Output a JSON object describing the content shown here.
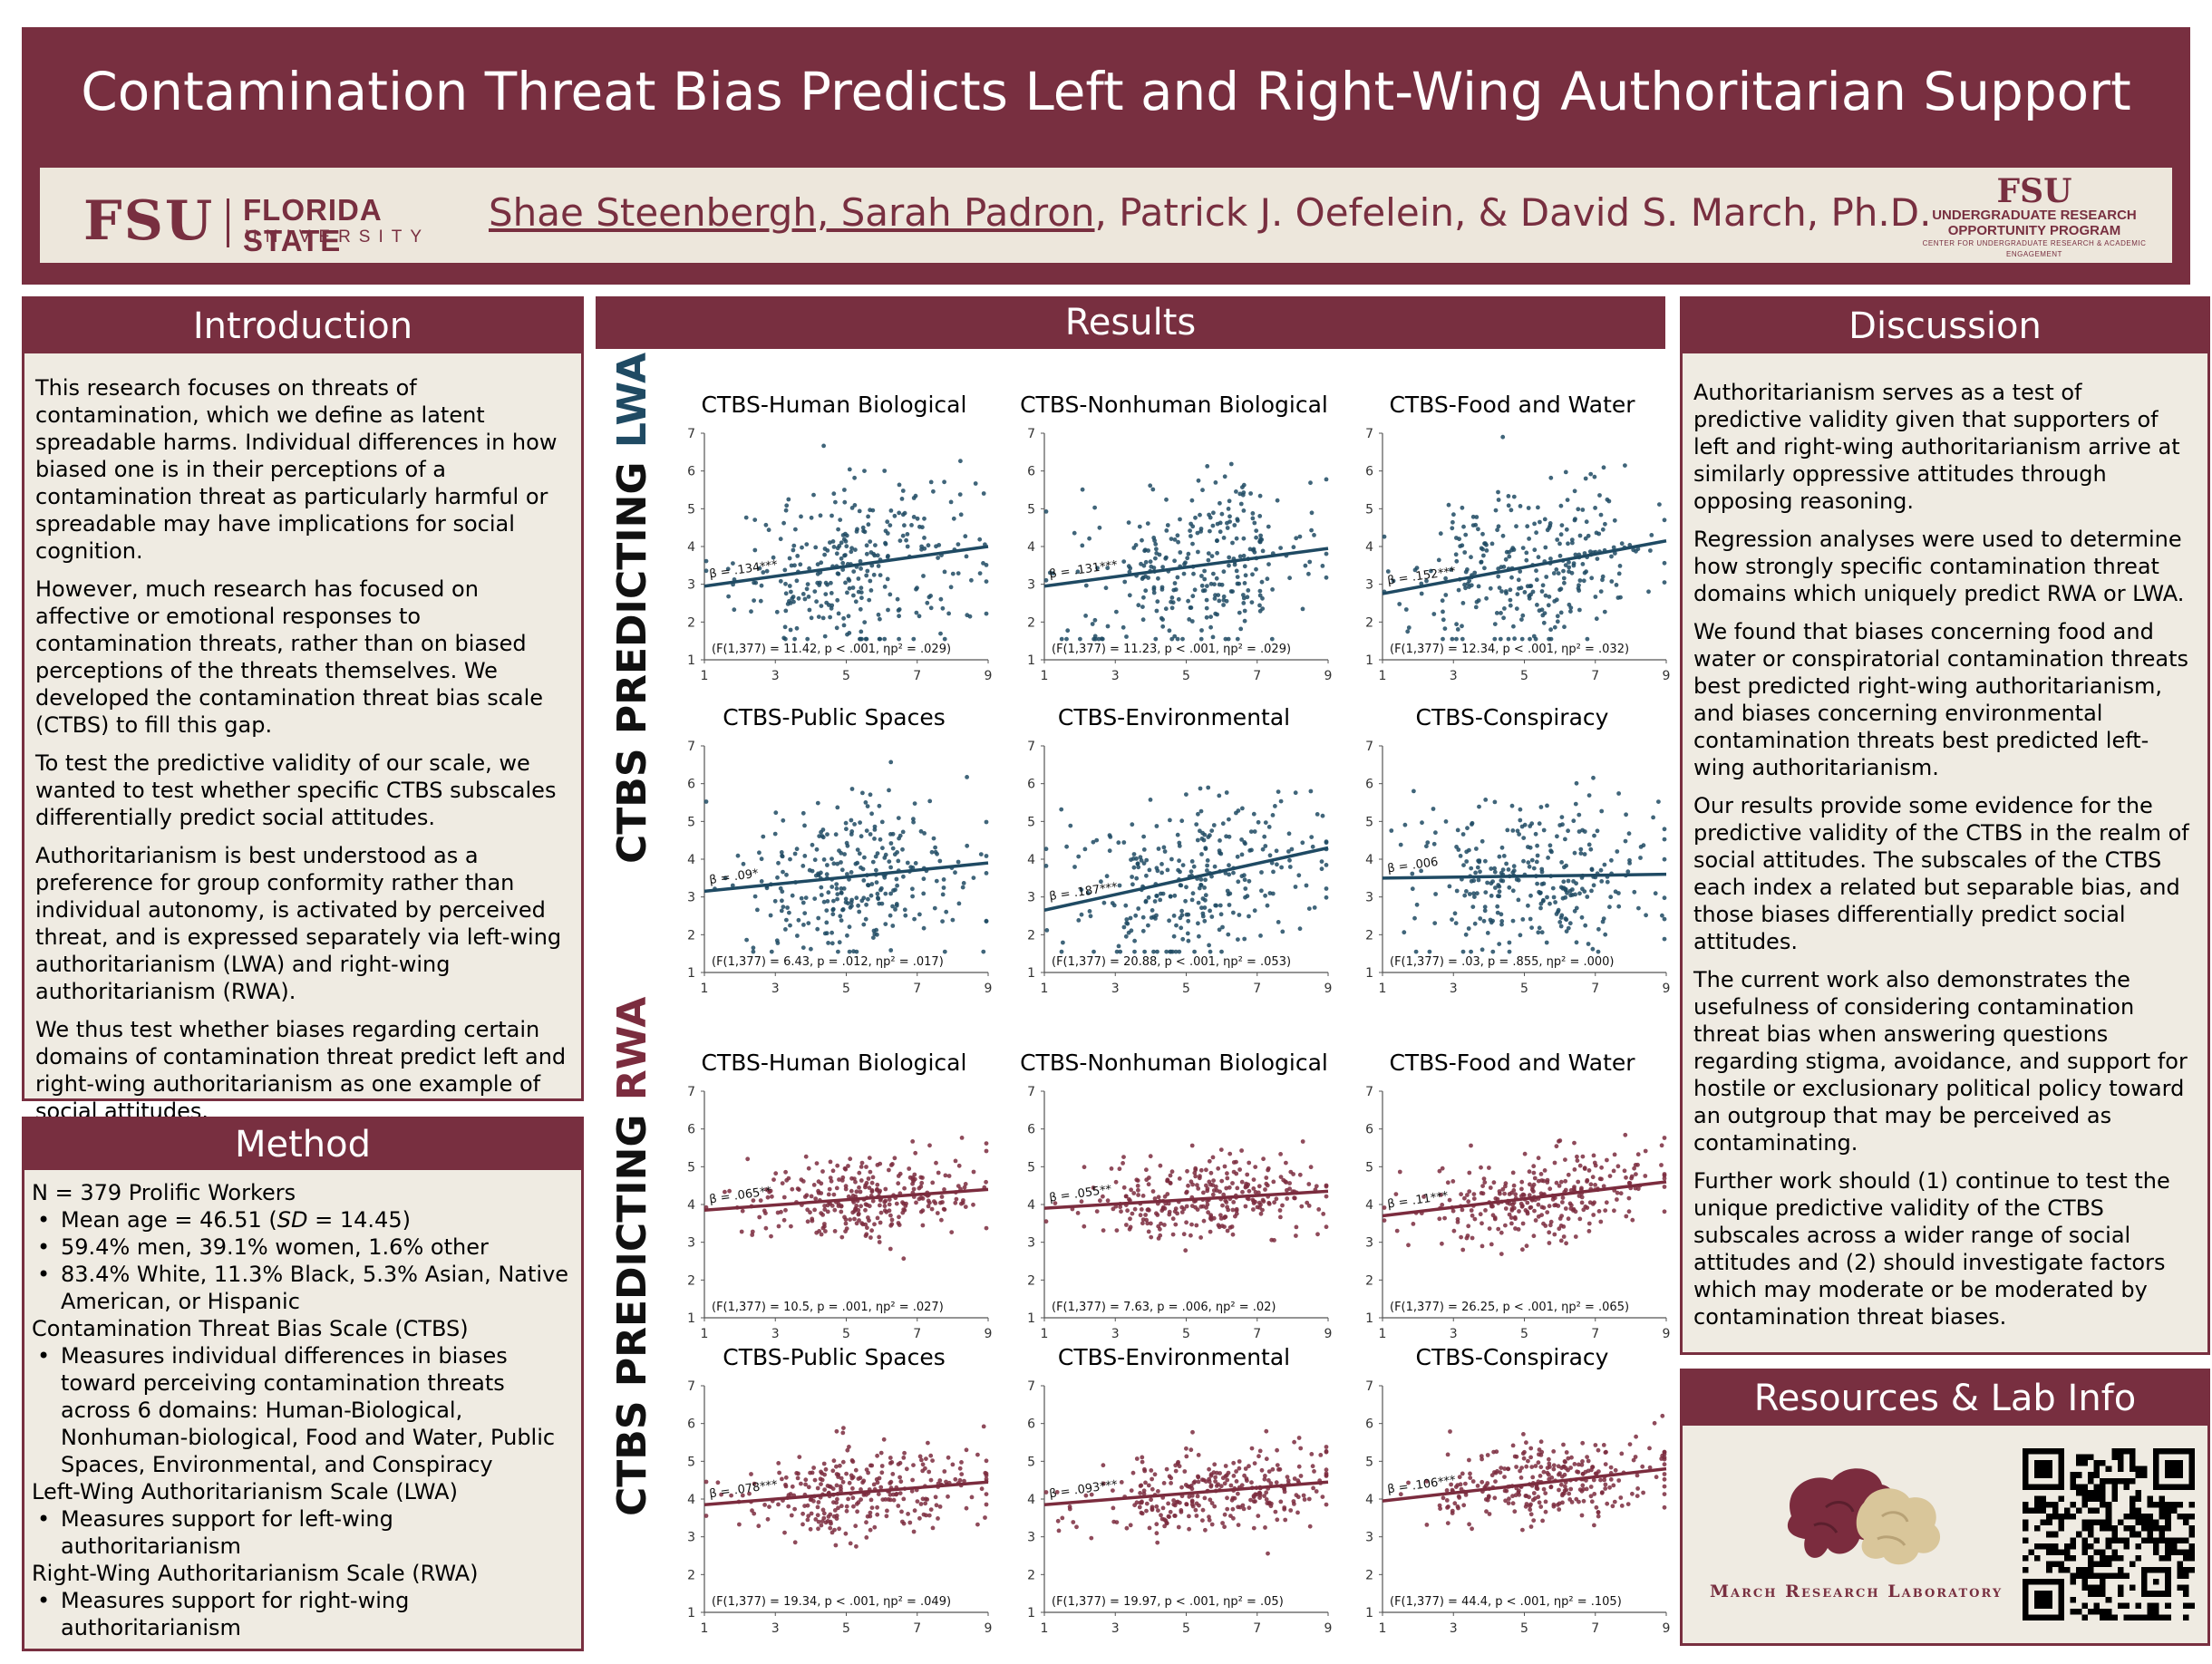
{
  "header": {
    "title": "Contamination Threat Bias Predicts Left and Right-Wing Authoritarian Support",
    "fsu_letters": "FSU",
    "fsu_name": "FLORIDA STATE",
    "fsu_university": "UNIVERSITY",
    "authors_underlined": "Shae Steenbergh, Sarah Padron",
    "authors_rest": ", Patrick J. Oefelein, & David S. March, Ph.D.",
    "urop_letters": "FSU",
    "urop_line1": "UNDERGRADUATE RESEARCH",
    "urop_line2": "OPPORTUNITY PROGRAM",
    "urop_line3": "CENTER FOR UNDERGRADUATE RESEARCH & ACADEMIC ENGAGEMENT"
  },
  "introduction": {
    "heading": "Introduction",
    "paragraphs": [
      "This research focuses on threats of contamination, which we define as latent spreadable harms. Individual differences in how biased one is in their perceptions of a contamination threat as particularly harmful or spreadable may have implications for social cognition.",
      "However, much research has focused on affective or emotional responses to contamination threats, rather than on biased perceptions of the threats themselves. We developed the contamination threat bias scale (CTBS) to fill this gap.",
      "To test the predictive validity of our scale, we wanted to test whether specific CTBS subscales differentially predict social attitudes.",
      "Authoritarianism is best understood as a preference for group conformity rather than individual autonomy, is activated by perceived threat, and is expressed separately via left-wing authoritarianism (LWA) and right-wing authoritarianism (RWA).",
      "We thus test whether biases regarding certain domains of contamination threat predict left and right-wing authoritarianism as one example of social attitudes."
    ]
  },
  "method": {
    "heading": "Method",
    "sample": "N = 379 Prolific Workers",
    "mean_age_prefix": "Mean age = 46.51 (",
    "mean_age_sd": "SD",
    "mean_age_suffix": " = 14.45)",
    "gender": "59.4% men, 39.1% women, 1.6% other",
    "race": "83.4% White, 11.3% Black, 5.3% Asian, Native American, or Hispanic",
    "ctbs_heading": "Contamination Threat Bias Scale (CTBS)",
    "ctbs_desc": "Measures individual differences in biases toward perceiving contamination threats across 6 domains: Human-Biological, Nonhuman-biological, Food and Water, Public Spaces, Environmental, and Conspiracy",
    "lwa_heading": "Left-Wing Authoritarianism Scale (LWA)",
    "lwa_desc": "Measures support for left-wing authoritarianism",
    "rwa_heading": "Right-Wing Authoritarianism Scale (RWA)",
    "rwa_desc": "Measures support for right-wing authoritarianism"
  },
  "results": {
    "heading": "Results",
    "lwa_label_prefix": "CTBS PREDICTING ",
    "lwa_label_accent": "LWA",
    "rwa_label_prefix": "CTBS PREDICTING ",
    "rwa_label_accent": "RWA"
  },
  "discussion": {
    "heading": "Discussion",
    "paragraphs": [
      "Authoritarianism serves as a test of predictive validity given that supporters of left and right-wing authoritarianism arrive at similarly oppressive attitudes through opposing reasoning.",
      "Regression analyses were used to determine how strongly specific contamination threat domains which uniquely predict RWA or LWA.",
      "We found that biases concerning food and water or conspiratorial contamination threats best predicted right-wing authoritarianism, and biases concerning environmental contamination threats best predicted left-wing authoritarianism.",
      "Our results provide some evidence for the predictive validity of the CTBS in the realm of social attitudes. The subscales of the CTBS each index a related but separable bias, and those biases differentially predict social attitudes.",
      "The current work also demonstrates the usefulness of considering contamination threat bias when answering questions regarding stigma, avoidance, and support for hostile or exclusionary political policy toward an outgroup that may be perceived as contaminating.",
      "Further work should (1) continue to test the unique predictive validity of the CTBS subscales across a wider range of social attitudes and (2) should investigate factors which may moderate or be moderated by contamination threat biases."
    ]
  },
  "resources": {
    "heading": "Resources & Lab Info",
    "lab_name": "March Research Laboratory"
  },
  "colors": {
    "maroon": "#782f40",
    "lwa_blue": "#1f4a63",
    "rwa_maroon": "#7b2c3e",
    "panel_bg": "#efebe2"
  },
  "icons": [
    "brain-logo-icon",
    "qr-code-icon"
  ],
  "chart_data": [
    {
      "type": "scatter",
      "group": "LWA",
      "title": "CTBS-Human Biological",
      "xlim": [
        1,
        9
      ],
      "ylim": [
        1,
        7
      ],
      "xticks": [
        1,
        3,
        5,
        7,
        9
      ],
      "yticks": [
        1,
        2,
        3,
        4,
        5,
        6,
        7
      ],
      "trend": [
        [
          1,
          2.95
        ],
        [
          9,
          4.0
        ]
      ],
      "beta_label": "β = .134***",
      "stats": "(F(1,377) = 11.42, p < .001, ηp² = .029)"
    },
    {
      "type": "scatter",
      "group": "LWA",
      "title": "CTBS-Nonhuman Biological",
      "xlim": [
        1,
        9
      ],
      "ylim": [
        1,
        7
      ],
      "xticks": [
        1,
        3,
        5,
        7,
        9
      ],
      "yticks": [
        1,
        2,
        3,
        4,
        5,
        6,
        7
      ],
      "trend": [
        [
          1,
          2.95
        ],
        [
          9,
          3.95
        ]
      ],
      "beta_label": "β = .131***",
      "stats": "(F(1,377) = 11.23, p < .001, ηp² = .029)"
    },
    {
      "type": "scatter",
      "group": "LWA",
      "title": "CTBS-Food and Water",
      "xlim": [
        1,
        9
      ],
      "ylim": [
        1,
        7
      ],
      "xticks": [
        1,
        3,
        5,
        7,
        9
      ],
      "yticks": [
        1,
        2,
        3,
        4,
        5,
        6,
        7
      ],
      "trend": [
        [
          1,
          2.75
        ],
        [
          9,
          4.15
        ]
      ],
      "beta_label": "β = .152***",
      "stats": "(F(1,377) = 12.34, p < .001, ηp² = .032)"
    },
    {
      "type": "scatter",
      "group": "LWA",
      "title": "CTBS-Public Spaces",
      "xlim": [
        1,
        9
      ],
      "ylim": [
        1,
        7
      ],
      "xticks": [
        1,
        3,
        5,
        7,
        9
      ],
      "yticks": [
        1,
        2,
        3,
        4,
        5,
        6,
        7
      ],
      "trend": [
        [
          1,
          3.15
        ],
        [
          9,
          3.9
        ]
      ],
      "beta_label": "β = .09*",
      "stats": "(F(1,377) = 6.43, p = .012, ηp² = .017)"
    },
    {
      "type": "scatter",
      "group": "LWA",
      "title": "CTBS-Environmental",
      "xlim": [
        1,
        9
      ],
      "ylim": [
        1,
        7
      ],
      "xticks": [
        1,
        3,
        5,
        7,
        9
      ],
      "yticks": [
        1,
        2,
        3,
        4,
        5,
        6,
        7
      ],
      "trend": [
        [
          1,
          2.65
        ],
        [
          9,
          4.3
        ]
      ],
      "beta_label": "β = .187***",
      "stats": "(F(1,377) = 20.88, p < .001, ηp² = .053)"
    },
    {
      "type": "scatter",
      "group": "LWA",
      "title": "CTBS-Conspiracy",
      "xlim": [
        1,
        9
      ],
      "ylim": [
        1,
        7
      ],
      "xticks": [
        1,
        3,
        5,
        7,
        9
      ],
      "yticks": [
        1,
        2,
        3,
        4,
        5,
        6,
        7
      ],
      "trend": [
        [
          1,
          3.5
        ],
        [
          9,
          3.6
        ]
      ],
      "beta_label": "β = .006",
      "stats": "(F(1,377) = .03, p = .855, ηp² = .000)"
    },
    {
      "type": "scatter",
      "group": "RWA",
      "title": "CTBS-Human Biological",
      "xlim": [
        1,
        9
      ],
      "ylim": [
        1,
        7
      ],
      "xticks": [
        1,
        3,
        5,
        7,
        9
      ],
      "yticks": [
        1,
        2,
        3,
        4,
        5,
        6,
        7
      ],
      "trend": [
        [
          1,
          3.85
        ],
        [
          9,
          4.4
        ]
      ],
      "beta_label": "β = .065**",
      "stats": "(F(1,377) = 10.5, p = .001, ηp² = .027)"
    },
    {
      "type": "scatter",
      "group": "RWA",
      "title": "CTBS-Nonhuman Biological",
      "xlim": [
        1,
        9
      ],
      "ylim": [
        1,
        7
      ],
      "xticks": [
        1,
        3,
        5,
        7,
        9
      ],
      "yticks": [
        1,
        2,
        3,
        4,
        5,
        6,
        7
      ],
      "trend": [
        [
          1,
          3.9
        ],
        [
          9,
          4.35
        ]
      ],
      "beta_label": "β = .055**",
      "stats": "(F(1,377) = 7.63, p = .006, ηp² = .02)"
    },
    {
      "type": "scatter",
      "group": "RWA",
      "title": "CTBS-Food and Water",
      "xlim": [
        1,
        9
      ],
      "ylim": [
        1,
        7
      ],
      "xticks": [
        1,
        3,
        5,
        7,
        9
      ],
      "yticks": [
        1,
        2,
        3,
        4,
        5,
        6,
        7
      ],
      "trend": [
        [
          1,
          3.7
        ],
        [
          9,
          4.6
        ]
      ],
      "beta_label": "β = .11***",
      "stats": "(F(1,377) = 26.25, p < .001, ηp² = .065)"
    },
    {
      "type": "scatter",
      "group": "RWA",
      "title": "CTBS-Public Spaces",
      "xlim": [
        1,
        9
      ],
      "ylim": [
        1,
        7
      ],
      "xticks": [
        1,
        3,
        5,
        7,
        9
      ],
      "yticks": [
        1,
        2,
        3,
        4,
        5,
        6,
        7
      ],
      "trend": [
        [
          1,
          3.85
        ],
        [
          9,
          4.45
        ]
      ],
      "beta_label": "β = .078***",
      "stats": "(F(1,377) = 19.34, p < .001, ηp² = .049)"
    },
    {
      "type": "scatter",
      "group": "RWA",
      "title": "CTBS-Environmental",
      "xlim": [
        1,
        9
      ],
      "ylim": [
        1,
        7
      ],
      "xticks": [
        1,
        3,
        5,
        7,
        9
      ],
      "yticks": [
        1,
        2,
        3,
        4,
        5,
        6,
        7
      ],
      "trend": [
        [
          1,
          3.85
        ],
        [
          9,
          4.45
        ]
      ],
      "beta_label": "β = .093***",
      "stats": "(F(1,377) = 19.97, p < .001, ηp² = .05)"
    },
    {
      "type": "scatter",
      "group": "RWA",
      "title": "CTBS-Conspiracy",
      "xlim": [
        1,
        9
      ],
      "ylim": [
        1,
        7
      ],
      "xticks": [
        1,
        3,
        5,
        7,
        9
      ],
      "yticks": [
        1,
        2,
        3,
        4,
        5,
        6,
        7
      ],
      "trend": [
        [
          1,
          3.95
        ],
        [
          9,
          4.8
        ]
      ],
      "beta_label": "β = .106***",
      "stats": "(F(1,377) = 44.4, p < .001, ηp² = .105)"
    }
  ]
}
